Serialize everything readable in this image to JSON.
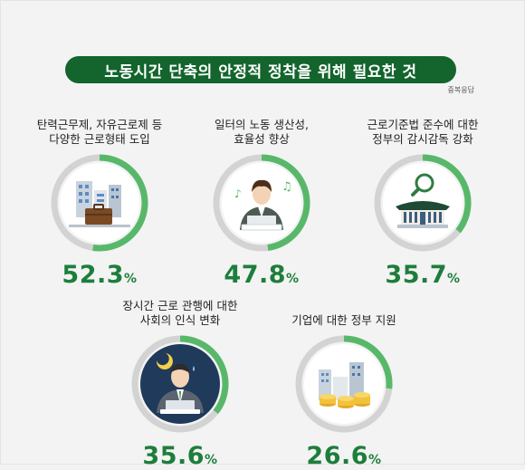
{
  "title": "노동시간 단축의 안정적 정착을 위해 필요한 것",
  "note": "중복응답",
  "colors": {
    "ring_fill": "#58b86a",
    "ring_track": "#d3d3d3",
    "value": "#1d7e3b",
    "title_bg": "#13652d"
  },
  "chart_data": {
    "type": "pie",
    "title": "노동시간 단축의 안정적 정착을 위해 필요한 것",
    "subtitle": "중복응답",
    "unit": "%",
    "items": [
      {
        "label": "탄력근무제, 자유근로제 등\n다양한 근로형태 도입",
        "value": 52.3,
        "icon": "office-buildings-briefcase-icon"
      },
      {
        "label": "일터의 노동 생산성,\n효율성 향상",
        "value": 47.8,
        "icon": "worker-at-laptop-music-icon"
      },
      {
        "label": "근로기준법 준수에 대한\n정부의 감시감독 강화",
        "value": 35.7,
        "icon": "government-building-magnifier-icon"
      },
      {
        "label": "장시간 근로 관행에 대한\n사회의 인식 변화",
        "value": 35.6,
        "icon": "worker-at-night-icon"
      },
      {
        "label": "기업에 대한 정부 지원",
        "value": 26.6,
        "icon": "buildings-coins-icon"
      }
    ]
  }
}
